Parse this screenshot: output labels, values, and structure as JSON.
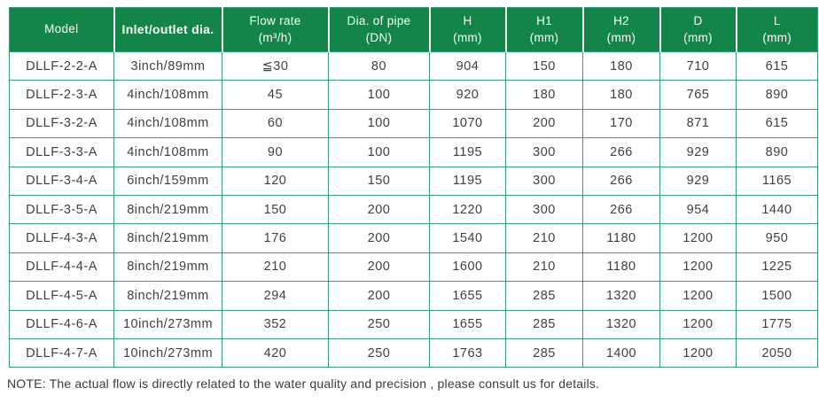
{
  "colors": {
    "header_green": "#148549",
    "grid_green": "#35997a",
    "header_separator": "#ffffff",
    "header_text": "#ffffff",
    "body_text": "#404040",
    "note_text": "#3a3a3a"
  },
  "table": {
    "columns": [
      {
        "id": "model",
        "line1": "Model",
        "line2": "",
        "bold": false
      },
      {
        "id": "inlet-outlet-dia",
        "line1": "Inlet/outlet dia.",
        "line2": "",
        "bold": true
      },
      {
        "id": "flow-rate",
        "line1": "Flow rate",
        "line2": "(m³/h)",
        "bold": false
      },
      {
        "id": "dia-of-pipe",
        "line1": "Dia. of pipe",
        "line2": "(DN)",
        "bold": false
      },
      {
        "id": "h",
        "line1": "H",
        "line2": "(mm)",
        "bold": false
      },
      {
        "id": "h1",
        "line1": "H1",
        "line2": "(mm)",
        "bold": false
      },
      {
        "id": "h2",
        "line1": "H2",
        "line2": "(mm)",
        "bold": false
      },
      {
        "id": "d",
        "line1": "D",
        "line2": "(mm)",
        "bold": false
      },
      {
        "id": "l",
        "line1": "L",
        "line2": "(mm)",
        "bold": false
      }
    ],
    "rows": [
      [
        "DLLF-2-2-A",
        "3inch/89mm",
        "≦30",
        "80",
        "904",
        "150",
        "180",
        "710",
        "615"
      ],
      [
        "DLLF-2-3-A",
        "4inch/108mm",
        "45",
        "100",
        "920",
        "180",
        "180",
        "765",
        "890"
      ],
      [
        "DLLF-3-2-A",
        "4inch/108mm",
        "60",
        "100",
        "1070",
        "200",
        "170",
        "871",
        "615"
      ],
      [
        "DLLF-3-3-A",
        "4inch/108mm",
        "90",
        "100",
        "1195",
        "300",
        "266",
        "929",
        "890"
      ],
      [
        "DLLF-3-4-A",
        "6inch/159mm",
        "120",
        "150",
        "1195",
        "300",
        "266",
        "929",
        "1165"
      ],
      [
        "DLLF-3-5-A",
        "8inch/219mm",
        "150",
        "200",
        "1220",
        "300",
        "266",
        "954",
        "1440"
      ],
      [
        "DLLF-4-3-A",
        "8inch/219mm",
        "176",
        "200",
        "1540",
        "210",
        "1180",
        "1200",
        "950"
      ],
      [
        "DLLF-4-4-A",
        "8inch/219mm",
        "210",
        "200",
        "1600",
        "210",
        "1180",
        "1200",
        "1225"
      ],
      [
        "DLLF-4-5-A",
        "8inch/219mm",
        "294",
        "200",
        "1655",
        "285",
        "1320",
        "1200",
        "1500"
      ],
      [
        "DLLF-4-6-A",
        "10inch/273mm",
        "352",
        "250",
        "1655",
        "285",
        "1320",
        "1200",
        "1775"
      ],
      [
        "DLLF-4-7-A",
        "10inch/273mm",
        "420",
        "250",
        "1763",
        "285",
        "1400",
        "1200",
        "2050"
      ]
    ]
  },
  "note": "NOTE: The actual flow is directly related to the water quality and precision , please consult us for details."
}
